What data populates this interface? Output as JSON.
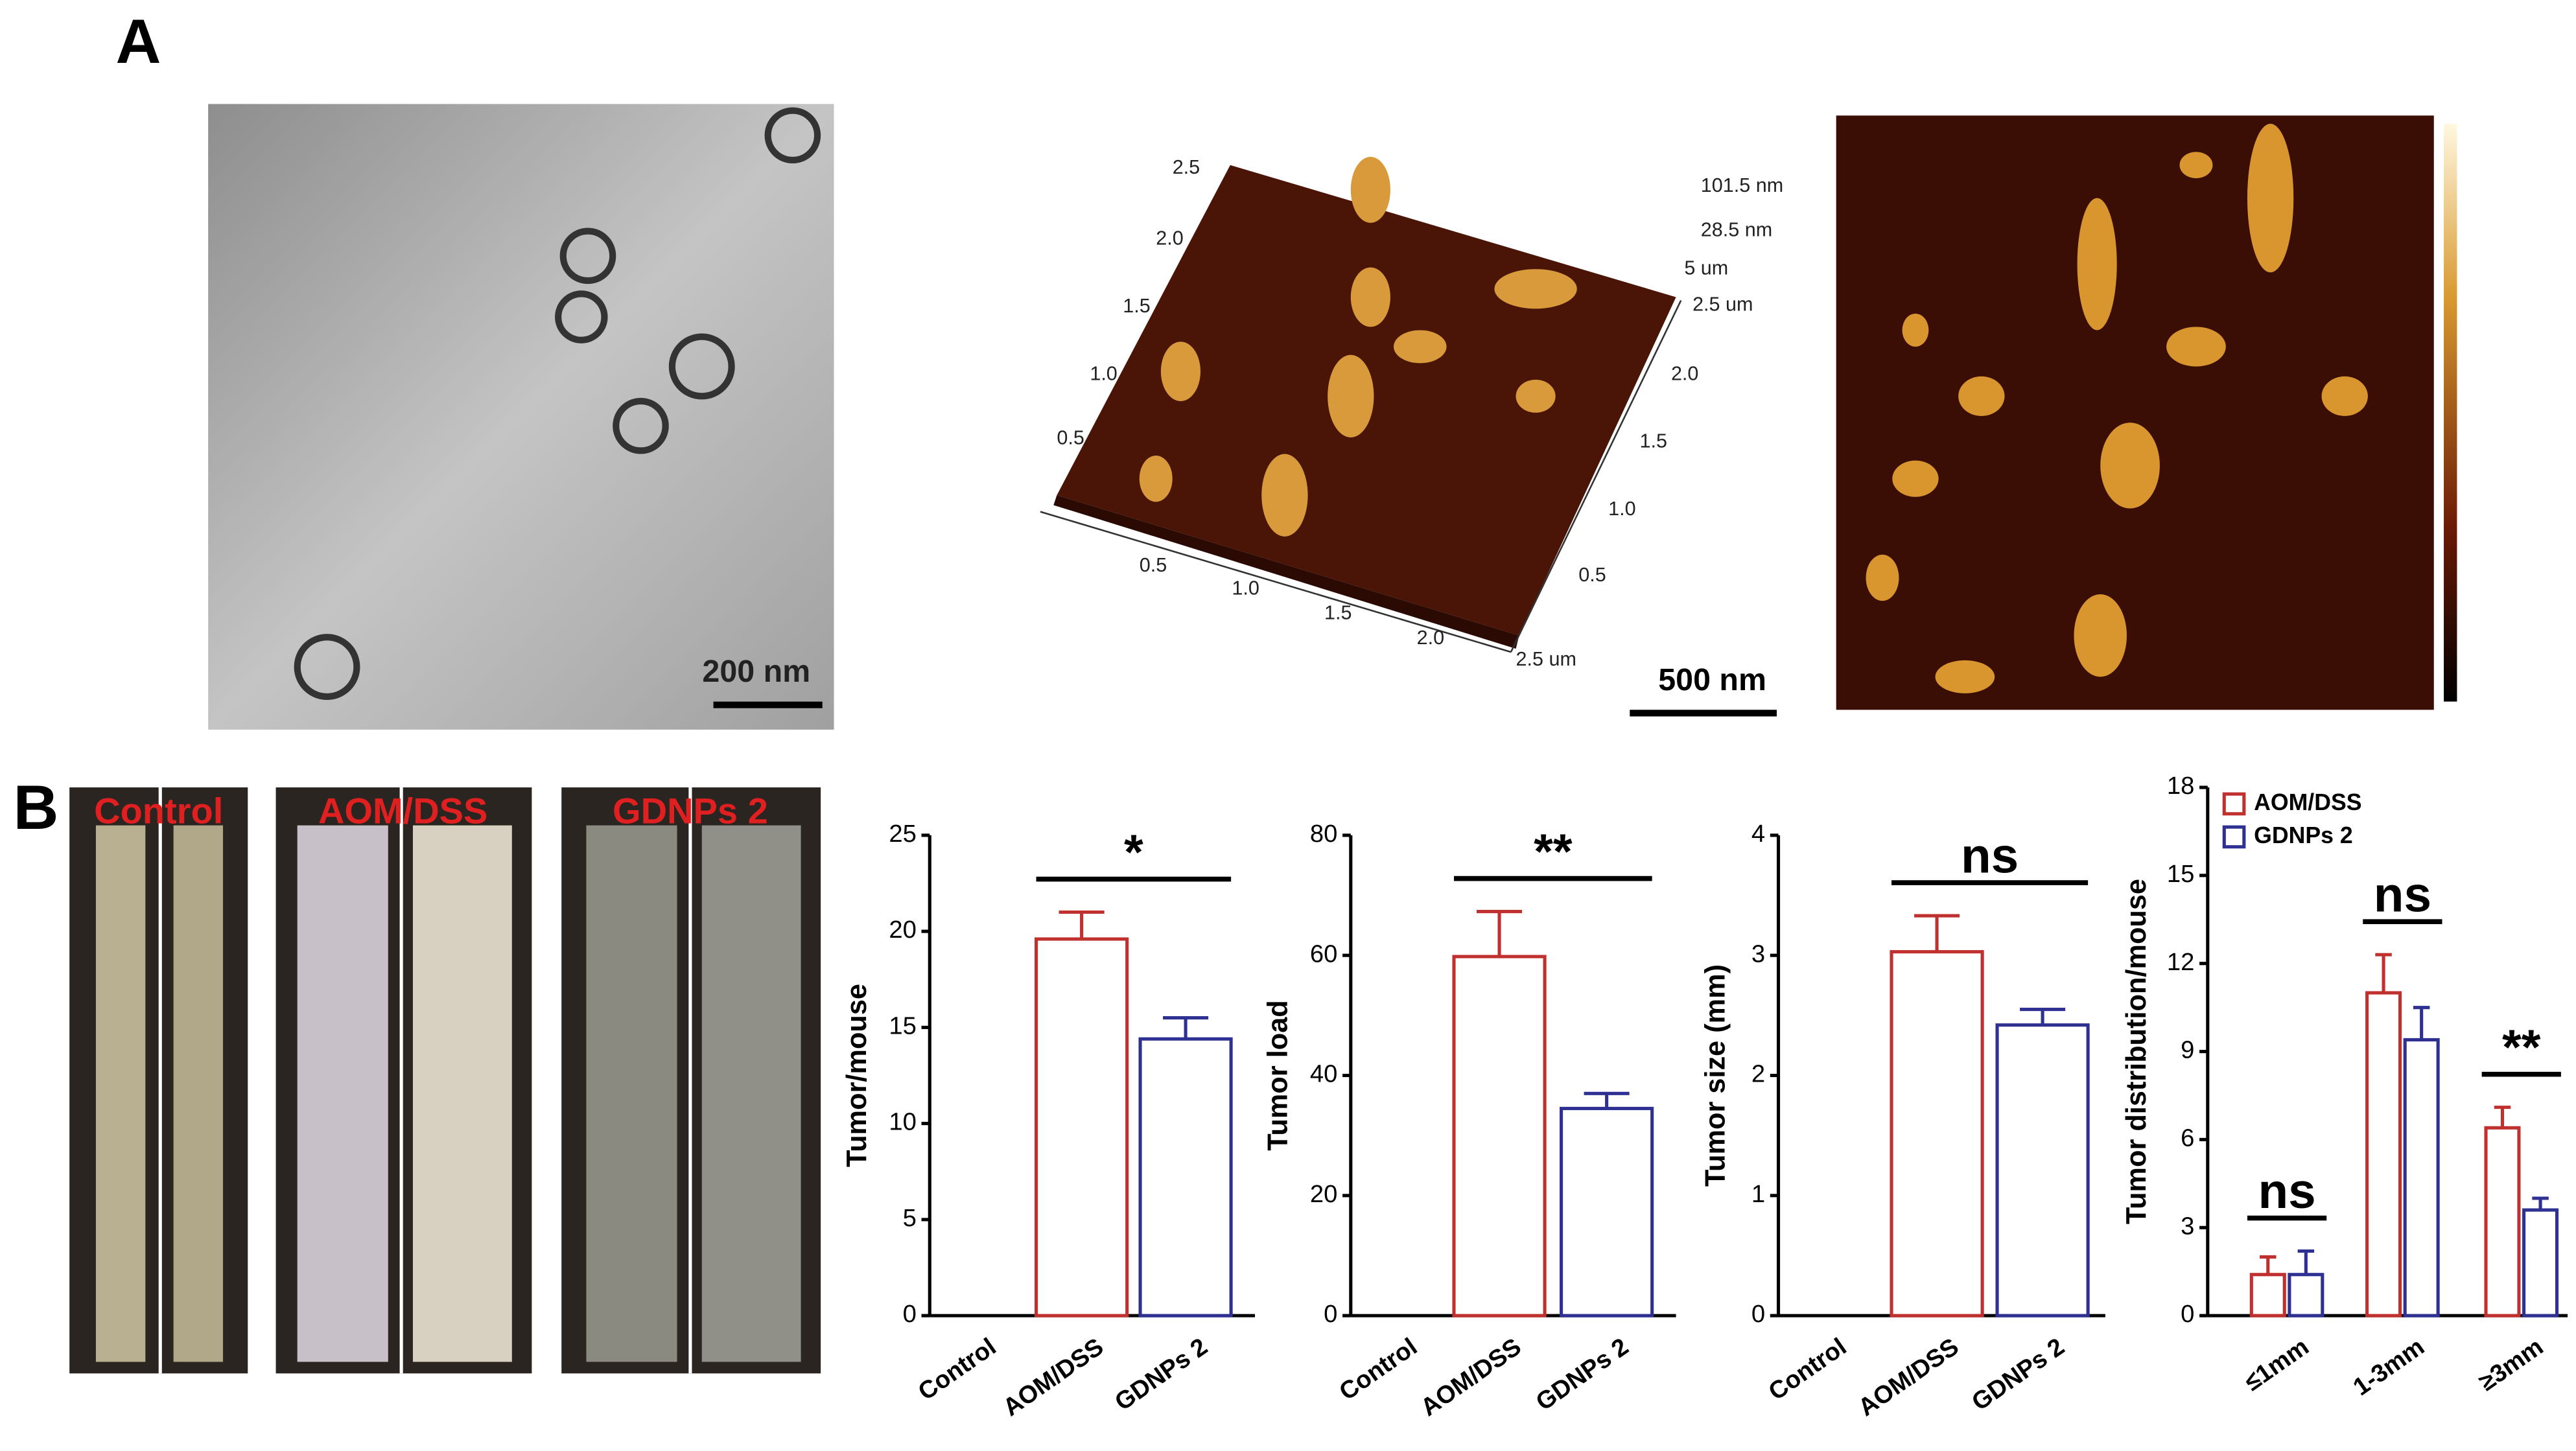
{
  "panel_labels": [
    "A",
    "B"
  ],
  "panel_a": {
    "tem_scale": "200 nm",
    "afm_scale": "500 nm",
    "afm_3d_labels": [
      "2.5",
      "2.0",
      "1.5",
      "1.0",
      "0.5",
      "101.5 nm",
      "28.5 nm",
      "5 um",
      "2.5 um",
      "2.0",
      "1.5",
      "1.0",
      "0.5",
      "0.5",
      "1.0",
      "1.5",
      "2.0",
      "2.5 um"
    ]
  },
  "panel_b": {
    "photo_labels": [
      "Control",
      "AOM/DSS",
      "GDNPs 2"
    ]
  },
  "chart_data": [
    {
      "type": "bar",
      "y_label": "Tumor/mouse",
      "categories": [
        "Control",
        "AOM/DSS",
        "GDNPs 2"
      ],
      "values": [
        null,
        19.6,
        14.4
      ],
      "errors": [
        null,
        1.4,
        1.1
      ],
      "colors": [
        null,
        "#c0302e",
        "#2e3192"
      ],
      "ylim": [
        0,
        25
      ],
      "yticks": [
        0,
        5,
        10,
        15,
        20,
        25
      ],
      "annotations": [
        {
          "label": "*",
          "between": [
            "AOM/DSS",
            "GDNPs 2"
          ]
        }
      ]
    },
    {
      "type": "bar",
      "y_label": "Tumor load",
      "categories": [
        "Control",
        "AOM/DSS",
        "GDNPs 2"
      ],
      "values": [
        null,
        59.8,
        34.5
      ],
      "errors": [
        null,
        7.5,
        2.5
      ],
      "colors": [
        null,
        "#c0302e",
        "#2e3192"
      ],
      "ylim": [
        0,
        80
      ],
      "yticks": [
        0,
        20,
        40,
        60,
        80
      ],
      "annotations": [
        {
          "label": "**",
          "between": [
            "AOM/DSS",
            "GDNPs 2"
          ]
        }
      ]
    },
    {
      "type": "bar",
      "y_label": "Tumor size (mm)",
      "categories": [
        "Control",
        "AOM/DSS",
        "GDNPs 2"
      ],
      "values": [
        null,
        3.03,
        2.42
      ],
      "errors": [
        null,
        0.3,
        0.13
      ],
      "colors": [
        null,
        "#c0302e",
        "#2e3192"
      ],
      "ylim": [
        0,
        4
      ],
      "yticks": [
        0,
        1,
        2,
        3,
        4
      ],
      "annotations": [
        {
          "label": "ns",
          "between": [
            "AOM/DSS",
            "GDNPs 2"
          ]
        }
      ]
    },
    {
      "type": "grouped_bar",
      "y_label": "Tumor distribution/mouse",
      "categories": [
        "≤1mm",
        "1-3mm",
        "≥3mm"
      ],
      "series": [
        {
          "name": "AOM/DSS",
          "color": "#c0302e",
          "values": [
            1.4,
            11.0,
            6.4
          ],
          "errors": [
            0.6,
            1.3,
            0.7
          ]
        },
        {
          "name": "GDNPs 2",
          "color": "#2e3192",
          "values": [
            1.4,
            9.4,
            3.6
          ],
          "errors": [
            0.8,
            1.1,
            0.4
          ]
        }
      ],
      "ylim": [
        0,
        18
      ],
      "yticks": [
        0,
        3,
        6,
        9,
        12,
        15,
        18
      ],
      "legend": "top-left",
      "annotations": [
        {
          "label": "ns",
          "group": "≤1mm"
        },
        {
          "label": "ns",
          "group": "1-3mm"
        },
        {
          "label": "**",
          "group": "≥3mm"
        }
      ]
    }
  ]
}
